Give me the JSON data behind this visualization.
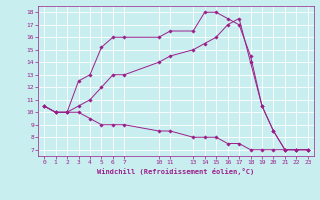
{
  "xlabel": "Windchill (Refroidissement éolien,°C)",
  "background_color": "#c8eef0",
  "grid_color": "#ffffff",
  "line_color": "#9b1f8a",
  "xlim": [
    -0.5,
    23.5
  ],
  "ylim": [
    6.5,
    18.5
  ],
  "yticks": [
    7,
    8,
    9,
    10,
    11,
    12,
    13,
    14,
    15,
    16,
    17,
    18
  ],
  "xticks": [
    0,
    1,
    2,
    3,
    4,
    5,
    6,
    7,
    10,
    11,
    13,
    14,
    15,
    16,
    17,
    18,
    19,
    20,
    21,
    22,
    23
  ],
  "series": [
    {
      "x": [
        0,
        1,
        2,
        3,
        4,
        5,
        6,
        7,
        10,
        11,
        13,
        14,
        15,
        16,
        17,
        18,
        19,
        20,
        21,
        22,
        23
      ],
      "y": [
        10.5,
        10.0,
        10.0,
        12.5,
        13.0,
        15.2,
        16.0,
        16.0,
        16.0,
        16.5,
        16.5,
        18.0,
        18.0,
        17.5,
        17.0,
        14.5,
        10.5,
        8.5,
        7.0,
        7.0,
        7.0
      ]
    },
    {
      "x": [
        0,
        1,
        2,
        3,
        4,
        5,
        6,
        7,
        10,
        11,
        13,
        14,
        15,
        16,
        17,
        18,
        19,
        20,
        21,
        22,
        23
      ],
      "y": [
        10.5,
        10.0,
        10.0,
        10.5,
        11.0,
        12.0,
        13.0,
        13.0,
        14.0,
        14.5,
        15.0,
        15.5,
        16.0,
        17.0,
        17.5,
        14.0,
        10.5,
        8.5,
        7.0,
        7.0,
        7.0
      ]
    },
    {
      "x": [
        0,
        1,
        2,
        3,
        4,
        5,
        6,
        7,
        10,
        11,
        13,
        14,
        15,
        16,
        17,
        18,
        19,
        20,
        21,
        22,
        23
      ],
      "y": [
        10.5,
        10.0,
        10.0,
        10.0,
        9.5,
        9.0,
        9.0,
        9.0,
        8.5,
        8.5,
        8.0,
        8.0,
        8.0,
        7.5,
        7.5,
        7.0,
        7.0,
        7.0,
        7.0,
        7.0,
        7.0
      ]
    }
  ]
}
